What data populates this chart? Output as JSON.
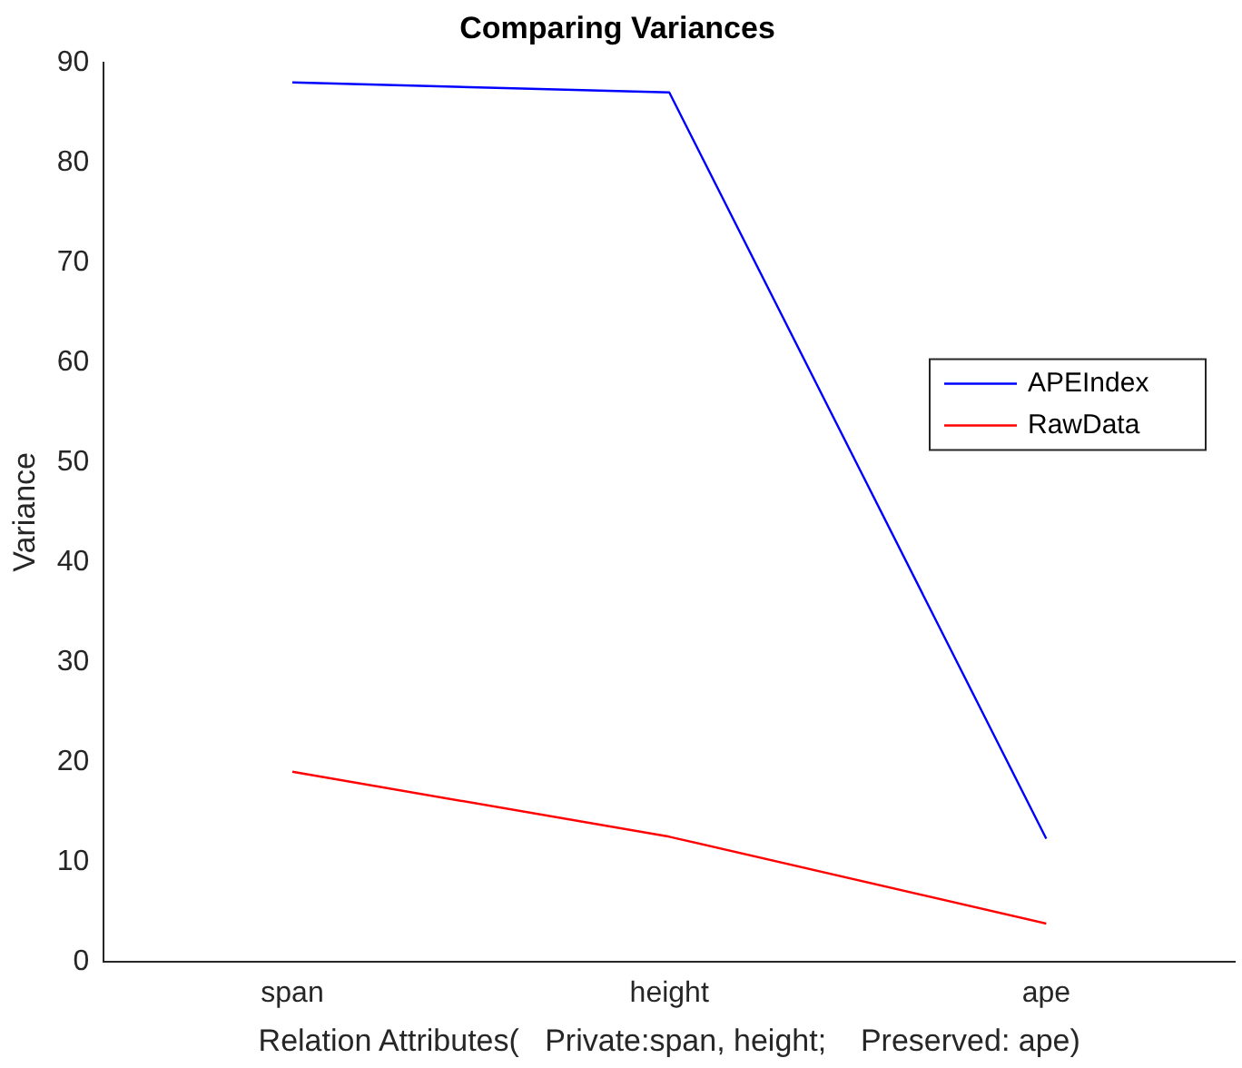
{
  "chart_data": {
    "type": "line",
    "title": "Comparing Variances",
    "xlabel": "Relation Attributes(   Private:span, height;    Preserved: ape)",
    "ylabel": "Variance",
    "categories": [
      "span",
      "height",
      "ape"
    ],
    "series": [
      {
        "name": "APEIndex",
        "color": "#0000ff",
        "values": [
          88,
          87,
          12.3
        ]
      },
      {
        "name": "RawData",
        "color": "#ff0000",
        "values": [
          19,
          12.5,
          3.8
        ]
      }
    ],
    "ylim": [
      0,
      90
    ],
    "yticks": [
      0,
      10,
      20,
      30,
      40,
      50,
      60,
      70,
      80,
      90
    ],
    "grid": false,
    "legend": "right",
    "marker": "none",
    "line_style": "solid"
  }
}
